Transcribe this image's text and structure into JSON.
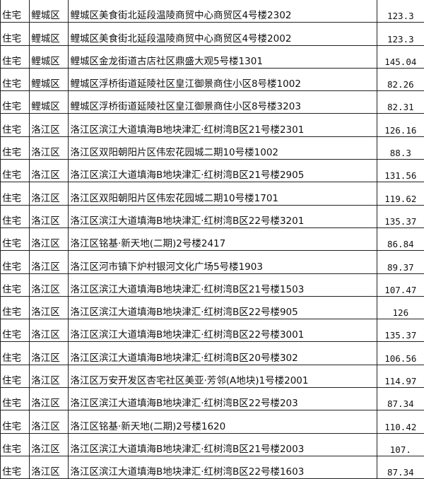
{
  "table": {
    "rows": [
      {
        "type": "住宅",
        "district": "鲤城区",
        "address": "鲤城区美食街北延段温陵商贸中心商贸区4号楼2302",
        "area": "123.3"
      },
      {
        "type": "住宅",
        "district": "鲤城区",
        "address": "鲤城区美食街北延段温陵商贸中心商贸区4号楼2002",
        "area": "123.3"
      },
      {
        "type": "住宅",
        "district": "鲤城区",
        "address": "鲤城区金龙街道古店社区鼎盛大观5号楼1301",
        "area": "145.04"
      },
      {
        "type": "住宅",
        "district": "鲤城区",
        "address": "鲤城区浮桥街道延陵社区皇江御景商住小区8号楼1002",
        "area": "82.26"
      },
      {
        "type": "住宅",
        "district": "鲤城区",
        "address": "鲤城区浮桥街道延陵社区皇江御景商住小区8号楼3203",
        "area": "82.31"
      },
      {
        "type": "住宅",
        "district": "洛江区",
        "address": "洛江区滨江大道填海B地块津汇·红树湾B区21号楼2301",
        "area": "126.16"
      },
      {
        "type": "住宅",
        "district": "洛江区",
        "address": "洛江区双阳朝阳片区伟宏花园城二期10号楼1002",
        "area": "88.3"
      },
      {
        "type": "住宅",
        "district": "洛江区",
        "address": "洛江区滨江大道填海B地块津汇·红树湾B区21号楼2905",
        "area": "131.56"
      },
      {
        "type": "住宅",
        "district": "洛江区",
        "address": "洛江区双阳朝阳片区伟宏花园城二期10号楼1701",
        "area": "119.62"
      },
      {
        "type": "住宅",
        "district": "洛江区",
        "address": "洛江区滨江大道填海B地块津汇·红树湾B区22号楼3201",
        "area": "135.37"
      },
      {
        "type": "住宅",
        "district": "洛江区",
        "address": "洛江区铭基·新天地(二期)2号楼2417",
        "area": "86.84"
      },
      {
        "type": "住宅",
        "district": "洛江区",
        "address": "洛江区河市镇下炉村银河文化广场5号楼1903",
        "area": "89.37"
      },
      {
        "type": "住宅",
        "district": "洛江区",
        "address": "洛江区滨江大道填海B地块津汇·红树湾B区21号楼1503",
        "area": "107.47"
      },
      {
        "type": "住宅",
        "district": "洛江区",
        "address": "洛江区滨江大道填海B地块津汇·红树湾B区22号楼905",
        "area": "126"
      },
      {
        "type": "住宅",
        "district": "洛江区",
        "address": "洛江区滨江大道填海B地块津汇·红树湾B区22号楼3001",
        "area": "135.37"
      },
      {
        "type": "住宅",
        "district": "洛江区",
        "address": "洛江区滨江大道填海B地块津汇·红树湾B区20号楼302",
        "area": "106.56"
      },
      {
        "type": "住宅",
        "district": "洛江区",
        "address": "洛江区万安开发区杏宅社区美亚·芳邻(A地块)1号楼2001",
        "area": "114.97"
      },
      {
        "type": "住宅",
        "district": "洛江区",
        "address": "洛江区滨江大道填海B地块津汇·红树湾B区22号楼203",
        "area": "87.34"
      },
      {
        "type": "住宅",
        "district": "洛江区",
        "address": "洛江区铭基·新天地(二期)2号楼1620",
        "area": "110.42"
      },
      {
        "type": "住宅",
        "district": "洛江区",
        "address": "洛江区滨江大道填海B地块津汇·红树湾B区21号楼2003",
        "area": "107."
      },
      {
        "type": "住宅",
        "district": "洛江区",
        "address": "洛江区滨江大道填海B地块津汇·红树湾B区22号楼1603",
        "area": "87.34"
      }
    ]
  }
}
